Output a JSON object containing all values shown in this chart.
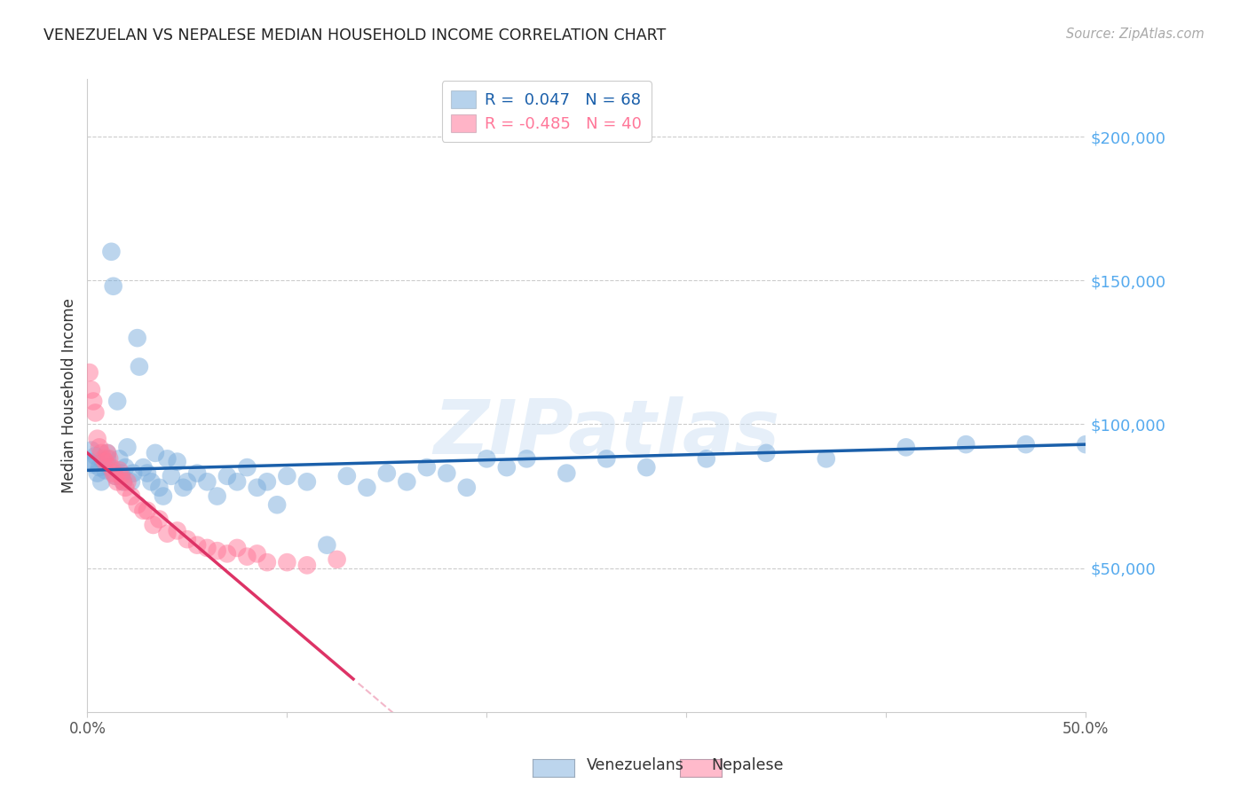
{
  "title": "VENEZUELAN VS NEPALESE MEDIAN HOUSEHOLD INCOME CORRELATION CHART",
  "source": "Source: ZipAtlas.com",
  "ylabel": "Median Household Income",
  "ymin": 0,
  "ymax": 220000,
  "xmin": 0.0,
  "xmax": 0.5,
  "venezuelan_R": 0.047,
  "venezuelan_N": 68,
  "nepalese_R": -0.485,
  "nepalese_N": 40,
  "venezuelan_color": "#7aaddd",
  "nepalese_color": "#ff7799",
  "trend_blue": "#1a5faa",
  "trend_pink": "#dd3366",
  "ytick_color": "#55aaee",
  "background": "#ffffff",
  "watermark_text": "ZIPatlas",
  "venezuelan_x": [
    0.001,
    0.002,
    0.003,
    0.004,
    0.005,
    0.006,
    0.007,
    0.008,
    0.009,
    0.01,
    0.01,
    0.011,
    0.012,
    0.013,
    0.014,
    0.015,
    0.016,
    0.017,
    0.018,
    0.019,
    0.02,
    0.022,
    0.023,
    0.025,
    0.026,
    0.028,
    0.03,
    0.032,
    0.034,
    0.036,
    0.038,
    0.04,
    0.042,
    0.045,
    0.048,
    0.05,
    0.055,
    0.06,
    0.065,
    0.07,
    0.075,
    0.08,
    0.085,
    0.09,
    0.095,
    0.1,
    0.11,
    0.12,
    0.13,
    0.14,
    0.15,
    0.16,
    0.17,
    0.18,
    0.19,
    0.2,
    0.21,
    0.22,
    0.24,
    0.26,
    0.28,
    0.31,
    0.34,
    0.37,
    0.41,
    0.44,
    0.47,
    0.5
  ],
  "venezuelan_y": [
    87000,
    91000,
    86000,
    89000,
    83000,
    85000,
    80000,
    87000,
    84000,
    90000,
    88000,
    85000,
    160000,
    148000,
    82000,
    108000,
    88000,
    83000,
    80000,
    85000,
    92000,
    80000,
    83000,
    130000,
    120000,
    85000,
    83000,
    80000,
    90000,
    78000,
    75000,
    88000,
    82000,
    87000,
    78000,
    80000,
    83000,
    80000,
    75000,
    82000,
    80000,
    85000,
    78000,
    80000,
    72000,
    82000,
    80000,
    58000,
    82000,
    78000,
    83000,
    80000,
    85000,
    83000,
    78000,
    88000,
    85000,
    88000,
    83000,
    88000,
    85000,
    88000,
    90000,
    88000,
    92000,
    93000,
    93000,
    93000
  ],
  "nepalese_x": [
    0.001,
    0.002,
    0.003,
    0.004,
    0.005,
    0.006,
    0.007,
    0.008,
    0.009,
    0.01,
    0.011,
    0.012,
    0.013,
    0.014,
    0.015,
    0.016,
    0.017,
    0.018,
    0.019,
    0.02,
    0.022,
    0.025,
    0.028,
    0.03,
    0.033,
    0.036,
    0.04,
    0.045,
    0.05,
    0.055,
    0.06,
    0.065,
    0.07,
    0.075,
    0.08,
    0.085,
    0.09,
    0.1,
    0.11,
    0.125
  ],
  "nepalese_y": [
    118000,
    112000,
    108000,
    104000,
    95000,
    92000,
    90000,
    88000,
    87000,
    90000,
    88000,
    85000,
    83000,
    82000,
    80000,
    84000,
    82000,
    80000,
    78000,
    80000,
    75000,
    72000,
    70000,
    70000,
    65000,
    67000,
    62000,
    63000,
    60000,
    58000,
    57000,
    56000,
    55000,
    57000,
    54000,
    55000,
    52000,
    52000,
    51000,
    53000
  ],
  "nep_trend_intercept": 90000,
  "nep_trend_slope": -590000,
  "ven_trend_intercept": 84000,
  "ven_trend_slope": 18000
}
